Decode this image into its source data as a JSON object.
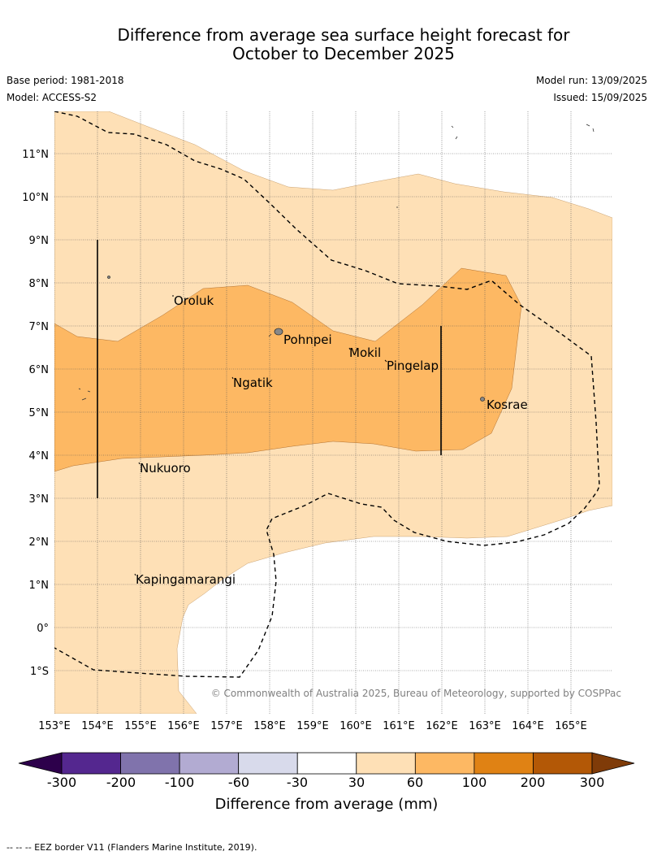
{
  "title_line1": "Difference from average sea surface height forecast for",
  "title_line2": "October to December 2025",
  "base_period": "Base period: 1981-2018",
  "model": "Model: ACCESS-S2",
  "model_run": "Model run: 13/09/2025",
  "issued": "Issued: 15/09/2025",
  "copyright": "© Commonwealth of Australia 2025, Bureau of Meteorology, supported by COSPPac",
  "lon_labels": [
    "153°E",
    "154°E",
    "155°E",
    "156°E",
    "157°E",
    "158°E",
    "159°E",
    "160°E",
    "161°E",
    "162°E",
    "163°E",
    "164°E",
    "165°E"
  ],
  "lat_labels": [
    "11°N",
    "10°N",
    "9°N",
    "8°N",
    "7°N",
    "6°N",
    "5°N",
    "4°N",
    "3°N",
    "2°N",
    "1°N",
    "0°",
    "1°S"
  ],
  "places": [
    {
      "name": "Oroluk",
      "lon": 155.8,
      "lat": 7.6
    },
    {
      "name": "Pohnpei",
      "lon": 158.2,
      "lat": 6.9
    },
    {
      "name": "Mokil",
      "lon": 159.8,
      "lat": 6.7
    },
    {
      "name": "Pingelap",
      "lon": 160.7,
      "lat": 6.2
    },
    {
      "name": "Ngatik",
      "lon": 157.2,
      "lat": 5.8
    },
    {
      "name": "Kosrae",
      "lon": 163.0,
      "lat": 5.3
    },
    {
      "name": "Nukuoro",
      "lon": 155.0,
      "lat": 3.8
    },
    {
      "name": "Kapingamarangi",
      "lon": 154.8,
      "lat": 1.1
    }
  ],
  "colorbar": {
    "ticks": [
      "-300",
      "-200",
      "-100",
      "-60",
      "-30",
      "30",
      "60",
      "100",
      "200",
      "300"
    ],
    "colors": [
      "#54278f",
      "#8073ac",
      "#b2abd2",
      "#d8daeb",
      "#ffffff",
      "#fee0b6",
      "#fdb863",
      "#e08214",
      "#b35806"
    ],
    "under_color": "#2d004b",
    "over_color": "#7f3b08",
    "label": "Difference from average (mm)"
  },
  "footer": "--  --  -- EEZ border V11 (Flanders Marine Institute, 2019)."
}
